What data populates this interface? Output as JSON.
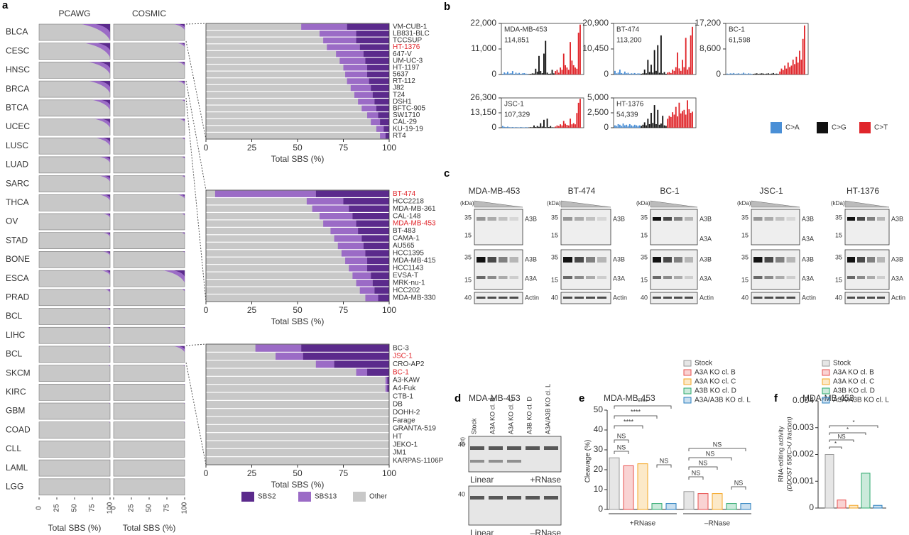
{
  "panel_letters": [
    "a",
    "b",
    "c",
    "d",
    "e",
    "f"
  ],
  "panel_a": {
    "columns": [
      "PCAWG",
      "COSMIC"
    ],
    "cancer_types": [
      "BLCA",
      "CESC",
      "HNSC",
      "BRCA",
      "BTCA",
      "UCEC",
      "LUSC",
      "LUAD",
      "SARC",
      "THCA",
      "OV",
      "STAD",
      "BONE",
      "ESCA",
      "PRAD",
      "BCL",
      "LIHC",
      "BCL",
      "SKCM",
      "KIRC",
      "GBM",
      "COAD",
      "CLL",
      "LAML",
      "LGG"
    ],
    "pcawg_peak": [
      40,
      35,
      30,
      30,
      25,
      22,
      20,
      15,
      15,
      15,
      10,
      10,
      10,
      12,
      8,
      5,
      5,
      3,
      3,
      2,
      2,
      2,
      1,
      1,
      1
    ],
    "cosmic_peak": [
      15,
      10,
      10,
      10,
      5,
      8,
      5,
      5,
      5,
      10,
      5,
      5,
      3,
      30,
      5,
      3,
      3,
      15,
      3,
      2,
      2,
      2,
      1,
      1,
      1
    ],
    "x_label": "Total SBS (%)",
    "xlim": [
      0,
      100
    ],
    "xticks": [
      0,
      25,
      50,
      75,
      100
    ],
    "series": [
      {
        "name": "SBS2",
        "color": "#5b2a8c"
      },
      {
        "name": "SBS13",
        "color": "#9b6bc6"
      },
      {
        "name": "Other",
        "color": "#c8c8c8"
      }
    ],
    "groups": [
      {
        "lines": [
          "VM-CUB-1",
          "LB831-BLC",
          "TCCSUP",
          "HT-1376",
          "647-V",
          "UM-UC-3",
          "HT-1197",
          "5637",
          "RT-112",
          "J82",
          "T24",
          "DSH1",
          "BFTC-905",
          "SW1710",
          "CAL-29",
          "KU-19-19",
          "RT4"
        ],
        "highlighted": [
          3
        ],
        "sbs2": [
          23,
          18,
          18,
          16,
          14,
          13,
          12,
          12,
          11,
          10,
          9,
          8,
          7,
          6,
          5,
          3,
          2
        ],
        "sbs13": [
          25,
          20,
          18,
          18,
          15,
          14,
          13,
          12,
          12,
          11,
          10,
          9,
          8,
          6,
          5,
          4,
          3
        ]
      },
      {
        "lines": [
          "BT-474",
          "HCC2218",
          "MDA-MB-361",
          "CAL-148",
          "MDA-MB-453",
          "BT-483",
          "CAMA-1",
          "AU565",
          "HCC1395",
          "MDA-MB-415",
          "HCC1143",
          "EVSA-T",
          "MRK-nu-1",
          "HCC202",
          "MDA-MB-330"
        ],
        "highlighted": [
          0,
          4
        ],
        "sbs2": [
          40,
          25,
          22,
          20,
          18,
          17,
          15,
          14,
          13,
          12,
          12,
          10,
          9,
          8,
          6
        ],
        "sbs13": [
          55,
          20,
          20,
          18,
          18,
          15,
          15,
          14,
          13,
          12,
          10,
          10,
          9,
          8,
          7
        ]
      },
      {
        "lines": [
          "BC-3",
          "JSC-1",
          "CRO-AP2",
          "BC-1",
          "A3-KAW",
          "A4-Fuk",
          "CTB-1",
          "DB",
          "DOHH-2",
          "Farage",
          "GRANTA-519",
          "HT",
          "JEKO-1",
          "JM1",
          "KARPAS-1106P"
        ],
        "highlighted": [
          1,
          3
        ],
        "sbs2": [
          48,
          47,
          30,
          12,
          1,
          1,
          0,
          0,
          0,
          0,
          0,
          0,
          0,
          0,
          0
        ],
        "sbs13": [
          25,
          15,
          10,
          6,
          1,
          1,
          0,
          0,
          0,
          0,
          0,
          0,
          0,
          0,
          0
        ]
      }
    ]
  },
  "panel_b": {
    "series": [
      {
        "name": "C>A",
        "color": "#4a8fd6"
      },
      {
        "name": "C>G",
        "color": "#111111"
      },
      {
        "name": "C>T",
        "color": "#e0262b"
      }
    ],
    "spectra": [
      {
        "name": "MDA-MB-453",
        "total": "114,851",
        "ylim": [
          0,
          22000
        ],
        "yticks": [
          0,
          {
            "value": 11000,
            "label": "11,000"
          },
          {
            "value": 22000,
            "label": "22,000"
          }
        ],
        "counts": [
          [
            300,
            900,
            500,
            1200,
            400,
            600,
            1500,
            300,
            800,
            400,
            700,
            300,
            500,
            600,
            400,
            300
          ],
          [
            200,
            300,
            500,
            400,
            2500,
            1200,
            8000,
            1500,
            600,
            9000,
            14500,
            800,
            300,
            400,
            2000,
            500
          ],
          [
            1500,
            2000,
            800,
            3000,
            2000,
            9000,
            4000,
            3000,
            2000,
            14000,
            6000,
            4000,
            3000,
            2500,
            18000,
            21500
          ]
        ]
      },
      {
        "name": "BT-474",
        "total": "113,200",
        "ylim": [
          0,
          20900
        ],
        "yticks": [
          0,
          {
            "value": 10450,
            "label": "10,450"
          },
          {
            "value": 20900,
            "label": "20,900"
          }
        ],
        "counts": [
          [
            1500,
            500,
            800,
            2000,
            600,
            400,
            1200,
            500,
            700,
            300,
            500,
            400,
            600,
            300,
            500,
            400
          ],
          [
            300,
            500,
            2000,
            500,
            6000,
            1000,
            4000,
            800,
            10000,
            1500,
            12000,
            700,
            16000,
            500,
            1000,
            300
          ],
          [
            800,
            1000,
            600,
            2000,
            1500,
            3000,
            9000,
            2500,
            1500,
            6000,
            3000,
            15000,
            2000,
            3000,
            16000,
            19500
          ]
        ]
      },
      {
        "name": "BC-1",
        "total": "61,598",
        "ylim": [
          0,
          17200
        ],
        "yticks": [
          0,
          {
            "value": 8600,
            "label": "8,600"
          },
          {
            "value": 17200,
            "label": "17,200"
          }
        ],
        "counts": [
          [
            300,
            200,
            400,
            300,
            500,
            200,
            300,
            400,
            200,
            300,
            600,
            300,
            200,
            400,
            300,
            200
          ],
          [
            200,
            300,
            400,
            200,
            300,
            400,
            300,
            200,
            300,
            400,
            200,
            300,
            500,
            200,
            300,
            200
          ],
          [
            1000,
            2000,
            1500,
            3000,
            2000,
            4000,
            2500,
            3000,
            5000,
            3500,
            6000,
            4000,
            8000,
            5000,
            12000,
            16500
          ]
        ]
      },
      {
        "name": "JSC-1",
        "total": "107,329",
        "ylim": [
          0,
          26300
        ],
        "yticks": [
          0,
          {
            "value": 13150,
            "label": "13,150"
          },
          {
            "value": 26300,
            "label": "26,300"
          }
        ],
        "counts": [
          [
            1500,
            800,
            600,
            1000,
            500,
            400,
            600,
            300,
            500,
            400,
            300,
            600,
            400,
            300,
            500,
            400
          ],
          [
            300,
            500,
            400,
            2000,
            600,
            1500,
            800,
            4000,
            1000,
            7000,
            500,
            8000,
            600,
            1500,
            400,
            300
          ],
          [
            1000,
            2000,
            1500,
            3000,
            2000,
            6000,
            3500,
            2500,
            2000,
            8000,
            3000,
            4000,
            3000,
            13000,
            22000,
            25500
          ]
        ]
      },
      {
        "name": "HT-1376",
        "total": "54,339",
        "ylim": [
          0,
          5000
        ],
        "yticks": [
          0,
          {
            "value": 2500,
            "label": "2,500"
          },
          {
            "value": 5000,
            "label": "5,000"
          }
        ],
        "counts": [
          [
            400,
            300,
            600,
            500,
            300,
            700,
            400,
            500,
            300,
            600,
            400,
            300,
            500,
            400,
            300,
            400
          ],
          [
            300,
            500,
            900,
            400,
            1500,
            600,
            2500,
            800,
            3800,
            600,
            3000,
            500,
            700,
            2000,
            400,
            300
          ],
          [
            1500,
            2000,
            1800,
            2600,
            2200,
            3500,
            1900,
            4200,
            2400,
            2800,
            3000,
            2200,
            4600,
            3100,
            2500,
            2700
          ]
        ]
      }
    ]
  },
  "panel_c": {
    "unit": "(kDa)",
    "actin": "Actin",
    "blots": [
      {
        "name": "MDA-MB-453",
        "top_markers": [
          35,
          15
        ],
        "top_labels": [
          "A3B"
        ],
        "mid_markers": [
          35,
          15
        ],
        "mid_labels": [
          "A3B",
          "A3A"
        ],
        "actin_marker": 40
      },
      {
        "name": "BT-474",
        "top_markers": [
          35,
          15
        ],
        "top_labels": [
          "A3B"
        ],
        "mid_markers": [
          35,
          15
        ],
        "mid_labels": [
          "A3B",
          "A3A"
        ],
        "actin_marker": 40
      },
      {
        "name": "BC-1",
        "top_markers": [
          35,
          15
        ],
        "top_labels": [
          "A3B",
          "A3A"
        ],
        "mid_markers": [
          35,
          15
        ],
        "mid_labels": [
          "A3B",
          "A3A"
        ],
        "actin_marker": 40
      },
      {
        "name": "JSC-1",
        "top_markers": [
          35,
          15
        ],
        "top_labels": [
          "A3B",
          "A3A"
        ],
        "mid_markers": [
          35,
          15
        ],
        "mid_labels": [
          "A3B",
          "A3A"
        ],
        "actin_marker": 40
      },
      {
        "name": "HT-1376",
        "top_markers": [
          35,
          15
        ],
        "top_labels": [
          "A3B"
        ],
        "mid_markers": [
          35,
          15
        ],
        "mid_labels": [
          "A3B",
          "A3A"
        ],
        "actin_marker": 40
      }
    ]
  },
  "panel_d": {
    "title": "MDA-MB-453",
    "lanes": [
      "Stock",
      "A3A KO cl. B",
      "A3A KO cl. C",
      "A3B KO cl. D",
      "A3A/A3B KO cl. L"
    ],
    "unit": "(nt)",
    "marker": 40,
    "gels": [
      {
        "left": "Linear",
        "right": "+RNase"
      },
      {
        "left": "Linear",
        "right": "–RNase"
      }
    ]
  },
  "panel_e": {
    "title": "MDA-MB-453",
    "y_label": "Cleavage (%)",
    "ylim": [
      0,
      50
    ],
    "yticks": [
      0,
      10,
      20,
      30,
      40,
      50
    ],
    "series": [
      {
        "name": "Stock",
        "color": "#9a9a9a"
      },
      {
        "name": "A3A KO cl. B",
        "color": "#e8504f"
      },
      {
        "name": "A3A KO cl. C",
        "color": "#f5a623"
      },
      {
        "name": "A3B KO cl. D",
        "color": "#2eaa6e"
      },
      {
        "name": "A3A/A3B KO cl. L",
        "color": "#2a7fbf"
      }
    ],
    "groups": [
      {
        "name": "+RNase",
        "values": [
          26,
          22,
          23,
          3,
          3
        ]
      },
      {
        "name": "–RNase",
        "values": [
          9,
          8,
          8,
          3,
          3
        ]
      }
    ],
    "significance": [
      "****",
      "****",
      "****",
      "NS",
      "NS",
      "NS",
      "NS",
      "NS",
      "NS",
      "NS",
      "NS"
    ]
  },
  "panel_f": {
    "title": "MDA-MB-453",
    "y_label": [
      "RNA-editing activity",
      "(DDOST 558C>U fraction)"
    ],
    "ylim": [
      0,
      0.004
    ],
    "yticks": [
      0,
      0.001,
      0.002,
      0.003,
      0.004
    ],
    "values": [
      0.002,
      0.0003,
      0.0001,
      0.0013,
      0.0001
    ],
    "significance": [
      "*",
      "*",
      "NS",
      "*"
    ]
  }
}
